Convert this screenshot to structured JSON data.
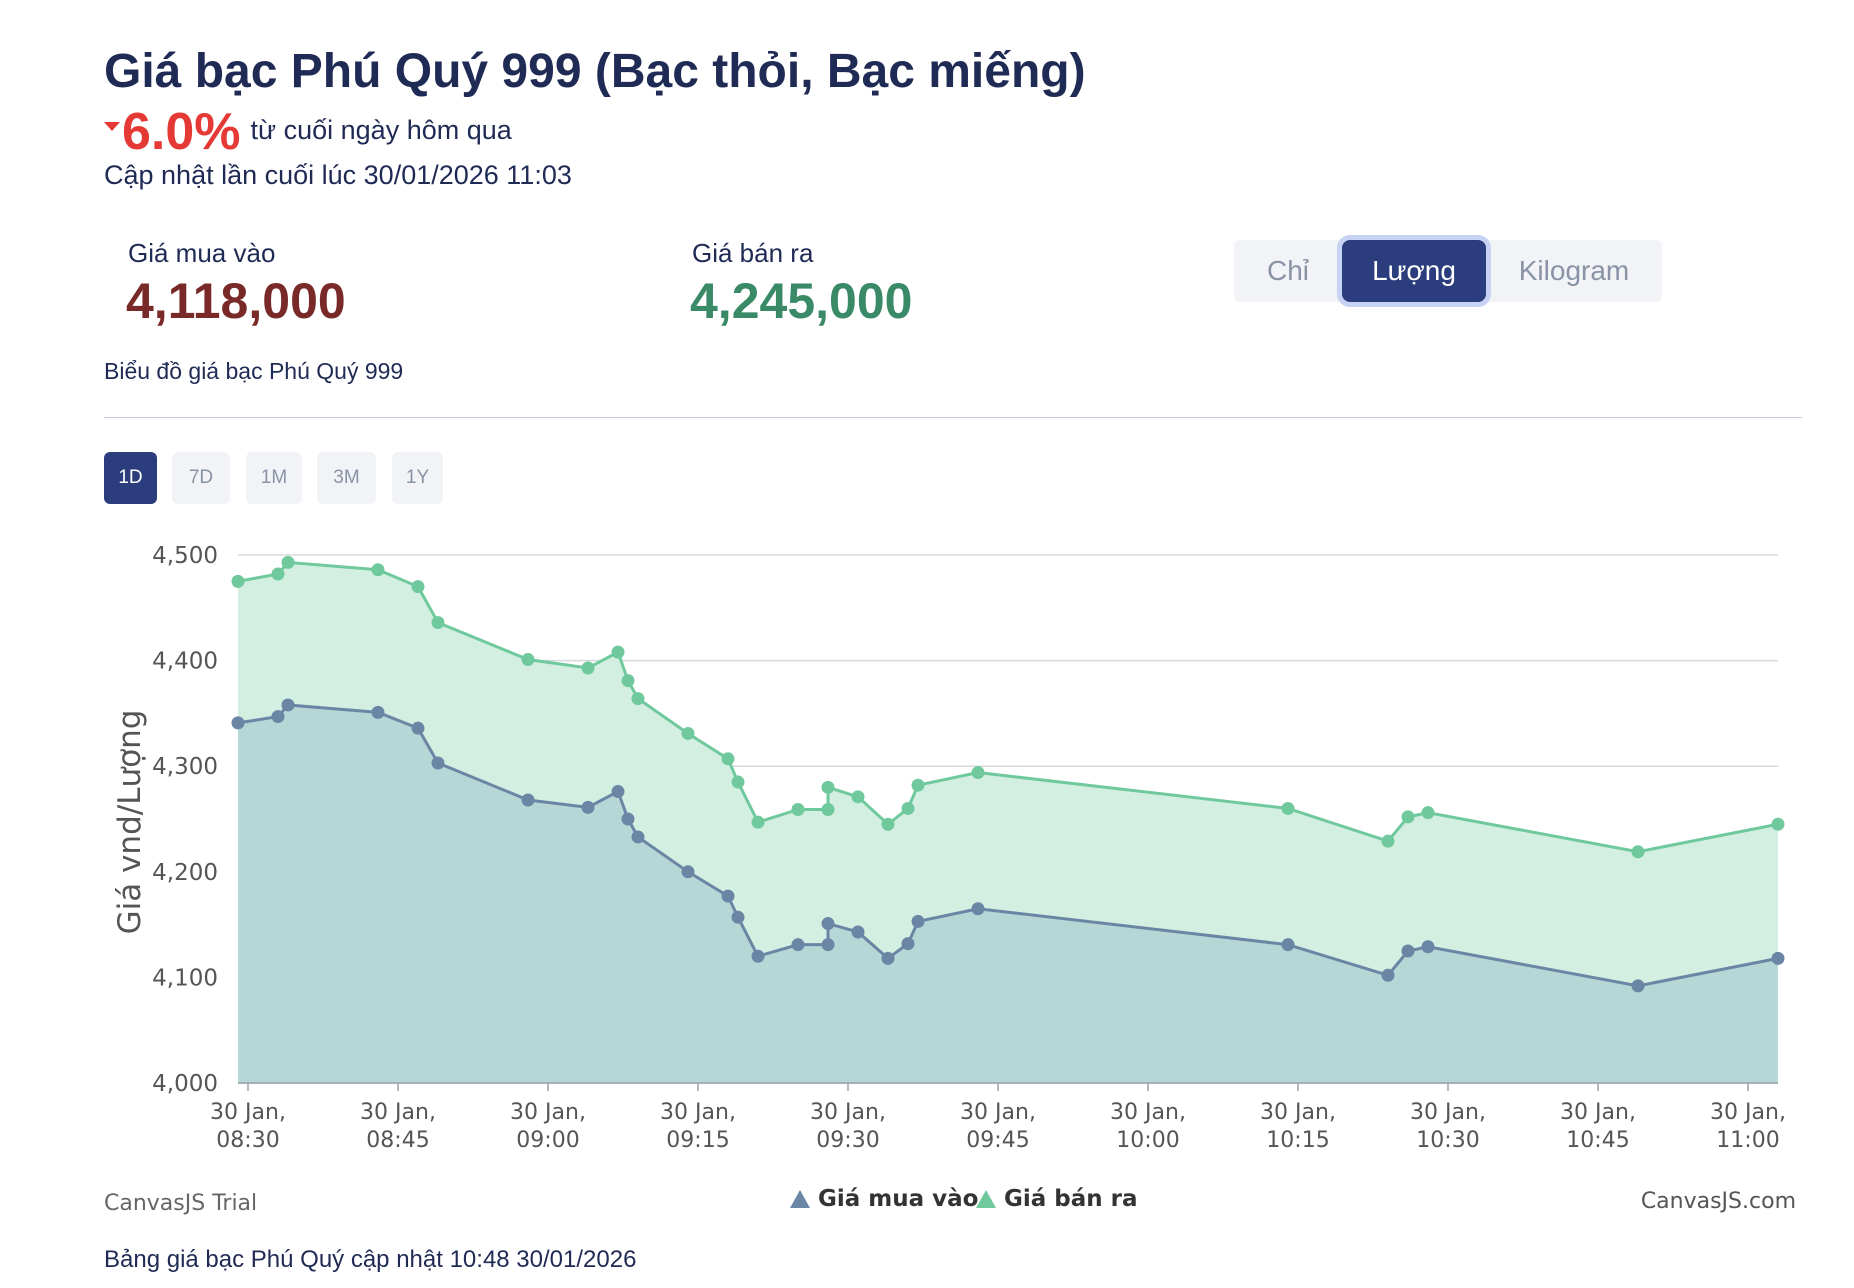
{
  "header": {
    "title": "Giá bạc Phú Quý 999 (Bạc thỏi, Bạc miếng)",
    "change_value": "6.0%",
    "change_text": "từ cuối ngày hôm qua",
    "updated": "Cập nhật lần cuối lúc 30/01/2026 11:03",
    "change_color": "#e53935"
  },
  "prices": {
    "buy_label": "Giá mua vào",
    "buy_value": "4,118,000",
    "sell_label": "Giá bán ra",
    "sell_value": "4,245,000",
    "buy_color": "#7a2929",
    "sell_color": "#3a8a68"
  },
  "unit_tabs": [
    {
      "label": "Chỉ",
      "active": false
    },
    {
      "label": "Lượng",
      "active": true
    },
    {
      "label": "Kilogram",
      "active": false
    }
  ],
  "chart_subtitle": "Biểu đồ giá bạc Phú Quý 999",
  "range_tabs": [
    {
      "label": "1D",
      "active": true
    },
    {
      "label": "7D",
      "active": false
    },
    {
      "label": "1M",
      "active": false
    },
    {
      "label": "3M",
      "active": false
    },
    {
      "label": "1Y",
      "active": false
    }
  ],
  "chart_data": {
    "type": "area",
    "ylabel": "Giá vnd/Lượng",
    "xlabel": "",
    "ylim": [
      4000,
      4500
    ],
    "y_ticks": [
      4000,
      4100,
      4200,
      4300,
      4400,
      4500
    ],
    "y_tick_labels": [
      "4,000",
      "4,100",
      "4,200",
      "4,300",
      "4,400",
      "4,500"
    ],
    "x_range": [
      "08:29",
      "11:03"
    ],
    "x_ticks": [
      "08:30",
      "08:45",
      "09:00",
      "09:15",
      "09:30",
      "09:45",
      "10:00",
      "10:15",
      "10:30",
      "10:45",
      "11:00"
    ],
    "x_tick_labels": [
      [
        "30 Jan,",
        "08:30"
      ],
      [
        "30 Jan,",
        "08:45"
      ],
      [
        "30 Jan,",
        "09:00"
      ],
      [
        "30 Jan,",
        "09:15"
      ],
      [
        "30 Jan,",
        "09:30"
      ],
      [
        "30 Jan,",
        "09:45"
      ],
      [
        "30 Jan,",
        "10:00"
      ],
      [
        "30 Jan,",
        "10:15"
      ],
      [
        "30 Jan,",
        "10:30"
      ],
      [
        "30 Jan,",
        "10:45"
      ],
      [
        "30 Jan,",
        "11:00"
      ]
    ],
    "grid": true,
    "legend_position": "bottom-center",
    "series": [
      {
        "name": "Giá bán ra",
        "color": "#6fc99d",
        "fill": "#d3efe2",
        "points": [
          [
            "08:29",
            4475
          ],
          [
            "08:33",
            4482
          ],
          [
            "08:34",
            4493
          ],
          [
            "08:43",
            4486
          ],
          [
            "08:47",
            4470
          ],
          [
            "08:49",
            4436
          ],
          [
            "08:58",
            4401
          ],
          [
            "09:04",
            4393
          ],
          [
            "09:07",
            4408
          ],
          [
            "09:08",
            4381
          ],
          [
            "09:09",
            4364
          ],
          [
            "09:14",
            4331
          ],
          [
            "09:18",
            4307
          ],
          [
            "09:19",
            4285
          ],
          [
            "09:21",
            4247
          ],
          [
            "09:25",
            4259
          ],
          [
            "09:28",
            4259
          ],
          [
            "09:28",
            4280
          ],
          [
            "09:31",
            4271
          ],
          [
            "09:34",
            4245
          ],
          [
            "09:36",
            4260
          ],
          [
            "09:37",
            4282
          ],
          [
            "09:43",
            4294
          ],
          [
            "10:14",
            4260
          ],
          [
            "10:24",
            4229
          ],
          [
            "10:26",
            4252
          ],
          [
            "10:28",
            4256
          ],
          [
            "10:49",
            4219
          ],
          [
            "11:03",
            4245
          ]
        ]
      },
      {
        "name": "Giá mua vào",
        "color": "#6b86a5",
        "fill": "#b6d7d6",
        "points": [
          [
            "08:29",
            4341
          ],
          [
            "08:33",
            4347
          ],
          [
            "08:34",
            4358
          ],
          [
            "08:43",
            4351
          ],
          [
            "08:47",
            4336
          ],
          [
            "08:49",
            4303
          ],
          [
            "08:58",
            4268
          ],
          [
            "09:04",
            4261
          ],
          [
            "09:07",
            4276
          ],
          [
            "09:08",
            4250
          ],
          [
            "09:09",
            4233
          ],
          [
            "09:14",
            4200
          ],
          [
            "09:18",
            4177
          ],
          [
            "09:19",
            4157
          ],
          [
            "09:21",
            4120
          ],
          [
            "09:25",
            4131
          ],
          [
            "09:28",
            4131
          ],
          [
            "09:28",
            4151
          ],
          [
            "09:31",
            4143
          ],
          [
            "09:34",
            4118
          ],
          [
            "09:36",
            4132
          ],
          [
            "09:37",
            4153
          ],
          [
            "09:43",
            4165
          ],
          [
            "10:14",
            4131
          ],
          [
            "10:24",
            4102
          ],
          [
            "10:26",
            4125
          ],
          [
            "10:28",
            4129
          ],
          [
            "10:49",
            4092
          ],
          [
            "11:03",
            4118
          ]
        ]
      }
    ]
  },
  "legend": {
    "buy_label": "Giá mua vào",
    "sell_label": "Giá bán ra"
  },
  "watermark_left": "CanvasJS Trial",
  "watermark_right": "CanvasJS.com",
  "footer": "Bảng giá bạc Phú Quý cập nhật 10:48 30/01/2026"
}
